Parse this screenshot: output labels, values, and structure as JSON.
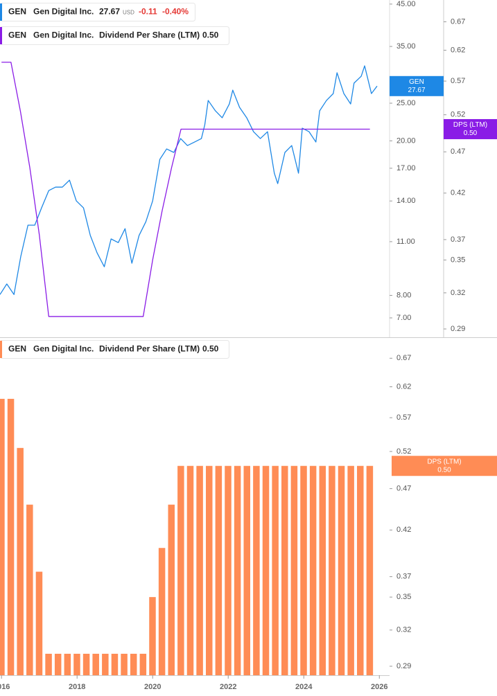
{
  "chart_data": [
    {
      "type": "line",
      "xlim": [
        2015.96,
        2026.27
      ],
      "ylim": [
        6.24,
        46.1
      ],
      "log_scale": true,
      "yticks": [
        {
          "value": 45,
          "label": "45.00"
        },
        {
          "value": 35,
          "label": "35.00"
        },
        {
          "value": 25,
          "label": "25.00"
        },
        {
          "value": 20,
          "label": "20.00"
        },
        {
          "value": 17,
          "label": "17.00"
        },
        {
          "value": 14,
          "label": "14.00"
        },
        {
          "value": 11,
          "label": "11.00"
        },
        {
          "value": 8,
          "label": "8.00"
        },
        {
          "value": 7,
          "label": "7.00"
        }
      ],
      "y2lim": [
        0.2835,
        0.711
      ],
      "y2ticks": [
        0.67,
        0.62,
        0.57,
        0.52,
        0.47,
        0.42,
        0.37,
        0.35,
        0.32,
        0.29
      ],
      "series": [
        {
          "ticker": "GEN",
          "name": "Gen Digital Inc.",
          "color": "#1e88e5",
          "last": 27.67,
          "currency": "USD",
          "change": "-0.11",
          "change_pct": "-0.40%",
          "x": [
            2015.96,
            2016.14,
            2016.33,
            2016.51,
            2016.7,
            2016.88,
            2017.06,
            2017.25,
            2017.43,
            2017.61,
            2017.8,
            2017.98,
            2018.17,
            2018.35,
            2018.53,
            2018.72,
            2018.9,
            2019.09,
            2019.27,
            2019.45,
            2019.64,
            2019.82,
            2020.0,
            2020.19,
            2020.37,
            2020.56,
            2020.74,
            2020.92,
            2021.11,
            2021.29,
            2021.38,
            2021.47,
            2021.66,
            2021.84,
            2022.03,
            2022.12,
            2022.3,
            2022.49,
            2022.67,
            2022.85,
            2023.04,
            2023.22,
            2023.31,
            2023.5,
            2023.68,
            2023.86,
            2023.96,
            2024.14,
            2024.32,
            2024.42,
            2024.6,
            2024.78,
            2024.88,
            2025.06,
            2025.24,
            2025.33,
            2025.52,
            2025.61,
            2025.79,
            2025.94
          ],
          "values": [
            8.04,
            8.56,
            8.04,
            10.08,
            12.13,
            12.13,
            13.44,
            14.89,
            15.2,
            15.2,
            15.84,
            14.01,
            13.44,
            11.41,
            10.29,
            9.48,
            11.18,
            10.94,
            11.88,
            9.68,
            11.41,
            12.38,
            14.01,
            17.92,
            19.06,
            18.67,
            20.27,
            19.45,
            19.86,
            20.27,
            22.0,
            25.41,
            23.9,
            22.93,
            24.89,
            27.02,
            24.39,
            22.93,
            21.11,
            20.27,
            21.11,
            16.51,
            15.52,
            18.67,
            19.45,
            16.51,
            21.56,
            21.11,
            19.86,
            23.9,
            25.41,
            26.47,
            29.95,
            26.47,
            24.89,
            28.16,
            29.34,
            31.2,
            26.47,
            27.67
          ]
        },
        {
          "ticker": "GEN",
          "name": "Gen Digital Inc.",
          "metric": "Dividend Per Share (LTM)",
          "badge": "DPS (LTM)",
          "last": "0.50",
          "color": "#8a1ce6",
          "axis": "y2",
          "x": [
            2016,
            2016.25,
            2016.5,
            2016.75,
            2017,
            2017.25,
            2017.5,
            2017.75,
            2018,
            2018.25,
            2018.5,
            2018.75,
            2019,
            2019.25,
            2019.5,
            2019.75,
            2020,
            2020.25,
            2020.5,
            2020.75,
            2021,
            2021.25,
            2021.5,
            2021.75,
            2022,
            2022.25,
            2022.5,
            2022.75,
            2023,
            2023.25,
            2023.5,
            2023.75,
            2024,
            2024.25,
            2024.5,
            2024.75,
            2025,
            2025.25,
            2025.5,
            2025.75
          ],
          "values": [
            0.6,
            0.6,
            0.525,
            0.45,
            0.375,
            0.3,
            0.3,
            0.3,
            0.3,
            0.3,
            0.3,
            0.3,
            0.3,
            0.3,
            0.3,
            0.3,
            0.35,
            0.4,
            0.45,
            0.5,
            0.5,
            0.5,
            0.5,
            0.5,
            0.5,
            0.5,
            0.5,
            0.5,
            0.5,
            0.5,
            0.5,
            0.5,
            0.5,
            0.5,
            0.5,
            0.5,
            0.5,
            0.5,
            0.5,
            0.5
          ]
        }
      ]
    },
    {
      "type": "bar",
      "xlim": [
        2015.96,
        2026.27
      ],
      "xticks": [
        2016,
        2018,
        2020,
        2022,
        2024,
        2026
      ],
      "ylim": [
        0.283,
        0.708
      ],
      "log_scale": true,
      "yticks": [
        0.67,
        0.62,
        0.57,
        0.52,
        0.47,
        0.42,
        0.37,
        0.35,
        0.32,
        0.29
      ],
      "series": [
        {
          "ticker": "GEN",
          "name": "Gen Digital Inc.",
          "metric": "Dividend Per Share (LTM)",
          "badge": "DPS (LTM)",
          "last": "0.50",
          "color": "#ff8c55",
          "x": [
            2016,
            2016.25,
            2016.5,
            2016.75,
            2017,
            2017.25,
            2017.5,
            2017.75,
            2018,
            2018.25,
            2018.5,
            2018.75,
            2019,
            2019.25,
            2019.5,
            2019.75,
            2020,
            2020.25,
            2020.5,
            2020.75,
            2021,
            2021.25,
            2021.5,
            2021.75,
            2022,
            2022.25,
            2022.5,
            2022.75,
            2023,
            2023.25,
            2023.5,
            2023.75,
            2024,
            2024.25,
            2024.5,
            2024.75,
            2025,
            2025.25,
            2025.5,
            2025.75
          ],
          "values": [
            0.6,
            0.6,
            0.525,
            0.45,
            0.375,
            0.3,
            0.3,
            0.3,
            0.3,
            0.3,
            0.3,
            0.3,
            0.3,
            0.3,
            0.3,
            0.3,
            0.35,
            0.4,
            0.45,
            0.5,
            0.5,
            0.5,
            0.5,
            0.5,
            0.5,
            0.5,
            0.5,
            0.5,
            0.5,
            0.5,
            0.5,
            0.5,
            0.5,
            0.5,
            0.5,
            0.5,
            0.5,
            0.5,
            0.5,
            0.5
          ]
        }
      ]
    }
  ]
}
